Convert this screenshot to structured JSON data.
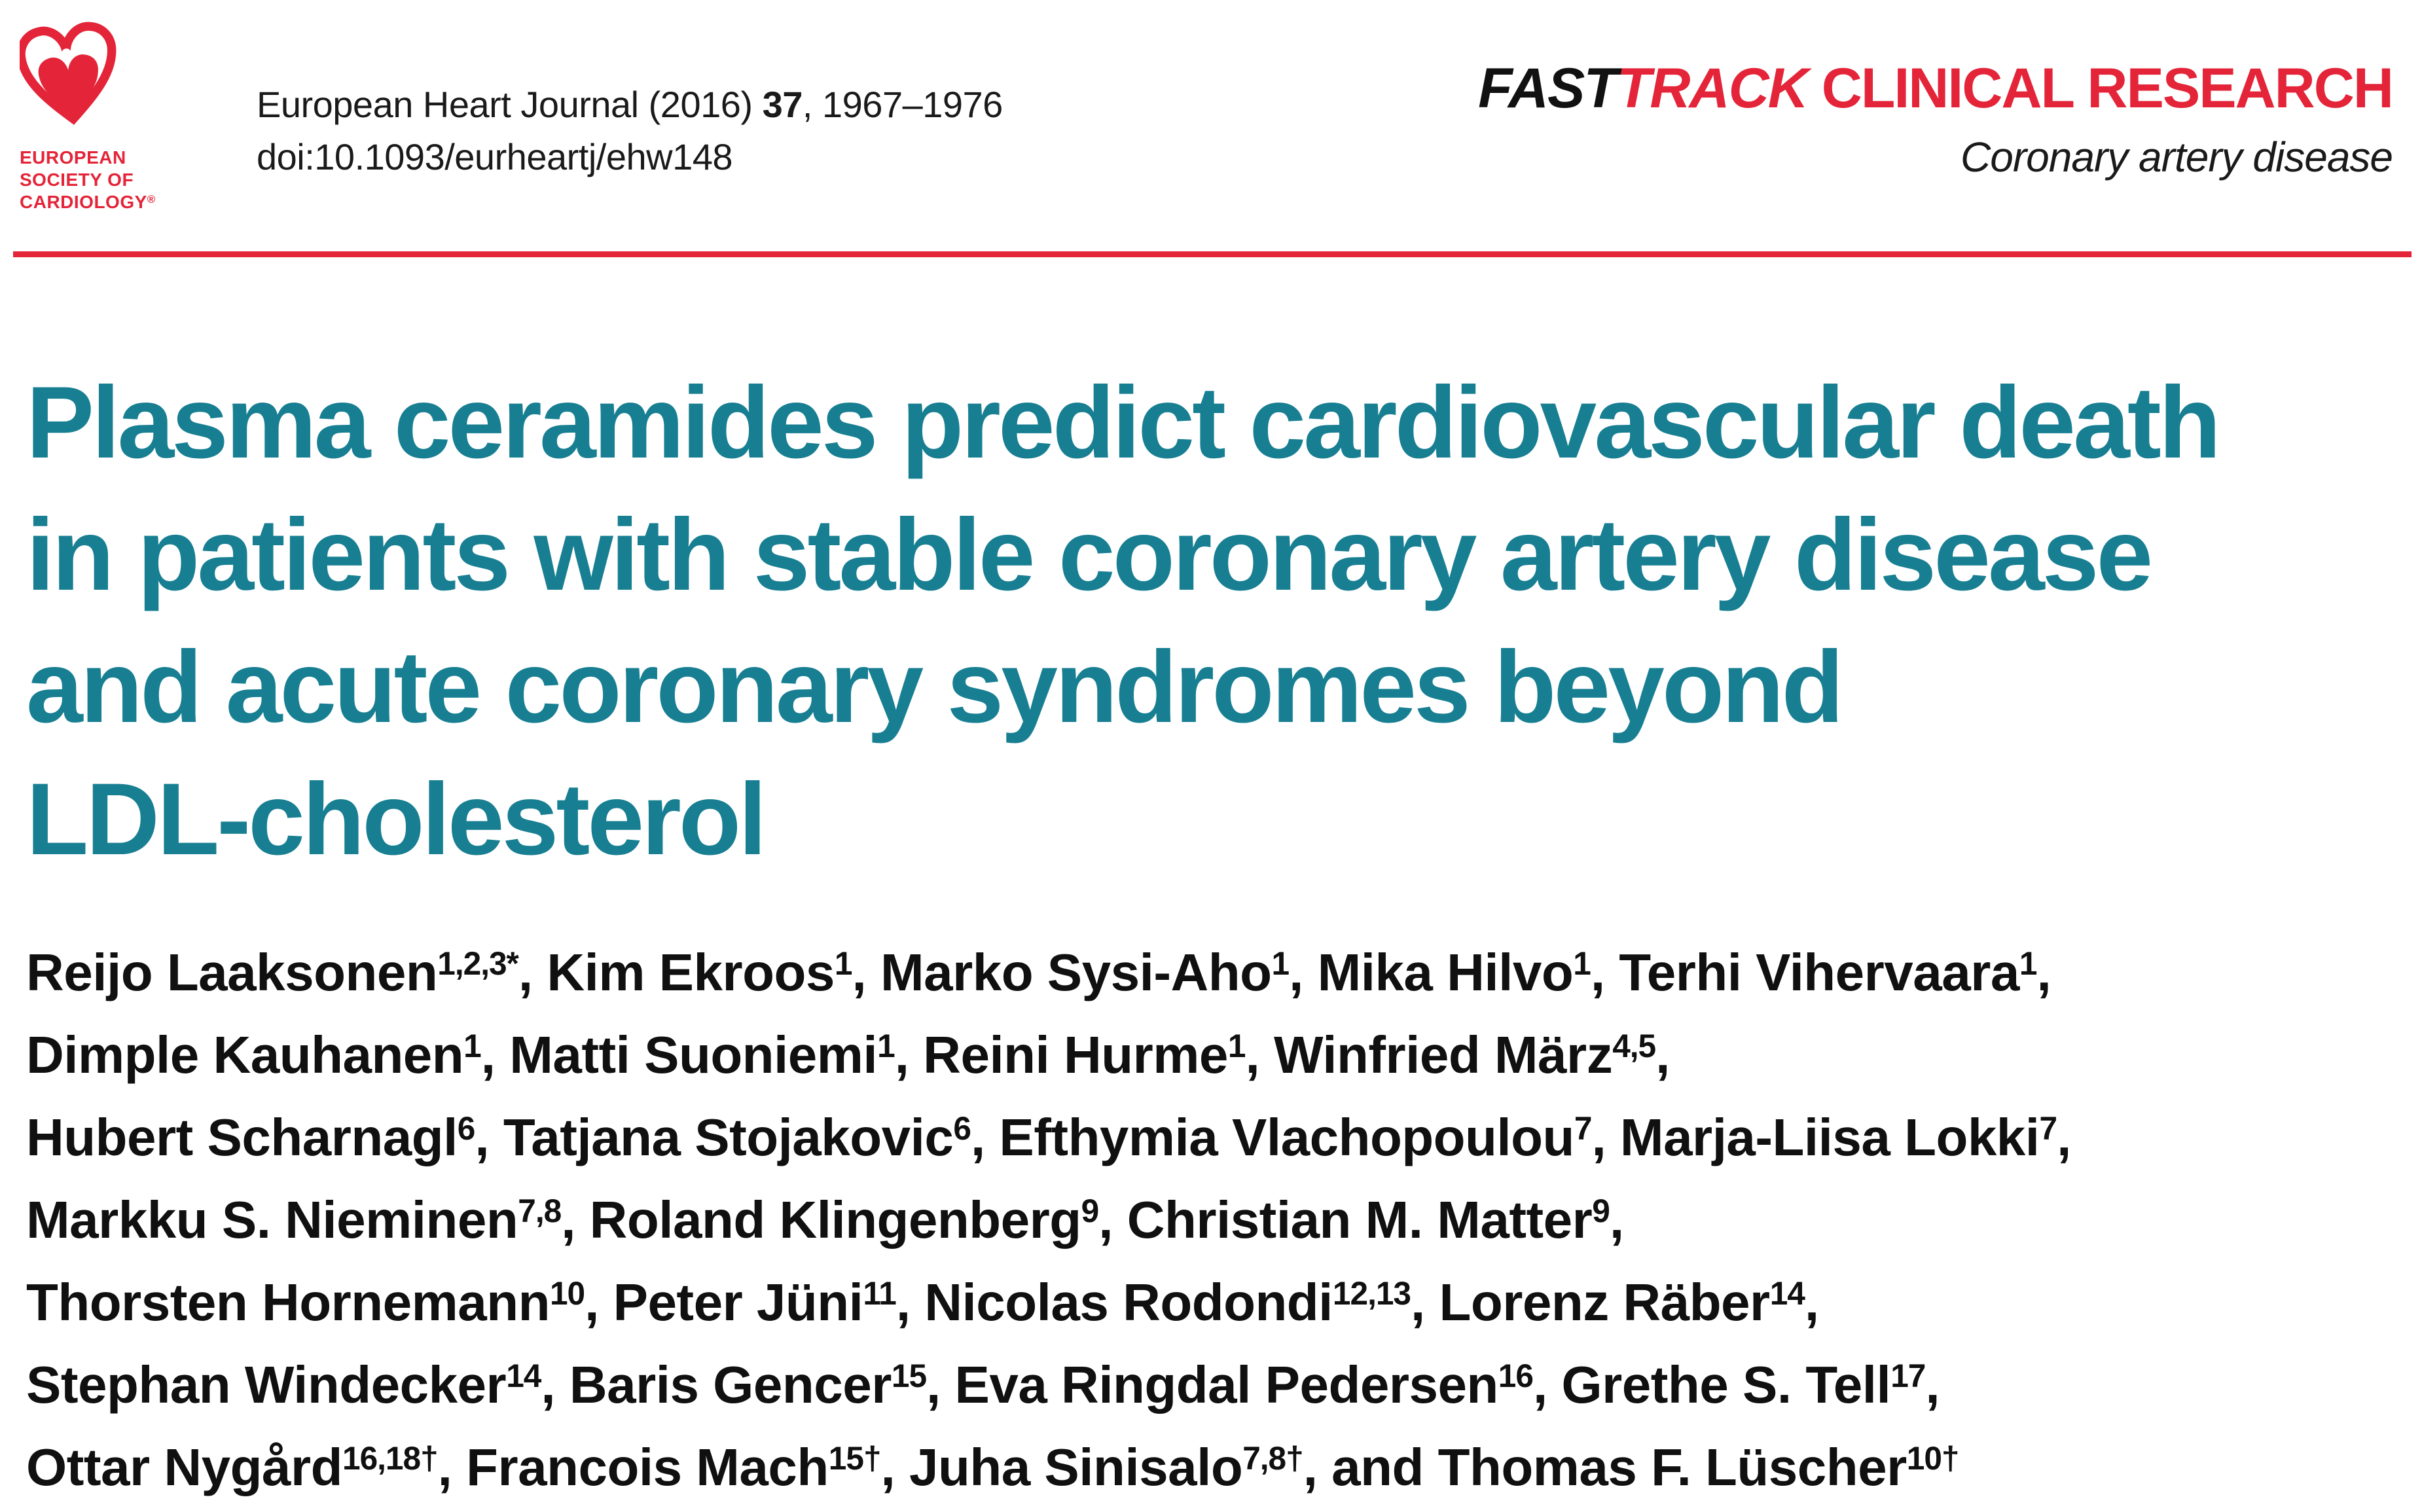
{
  "colors": {
    "brand_red": "#e42438",
    "title_teal": "#187f92",
    "text": "#1a1a1a"
  },
  "logo": {
    "line1": "EUROPEAN",
    "line2": "SOCIETY OF",
    "line3": "CARDIOLOGY",
    "reg": "®"
  },
  "citation": {
    "prefix": "European Heart Journal (2016) ",
    "volume": "37",
    "suffix": ", 1967–1976",
    "doi": "doi:10.1093/eurheartj/ehw148"
  },
  "banner": {
    "fast": "FAST",
    "track": "TRACK",
    "category": " CLINICAL RESEARCH",
    "subject": "Coronary artery disease"
  },
  "title": {
    "lines": [
      "Plasma ceramides predict cardiovascular death",
      "in patients with stable coronary artery disease",
      "and acute coronary syndromes beyond",
      "LDL-cholesterol"
    ]
  },
  "authors": {
    "lines": [
      [
        {
          "text": "Reijo Laaksonen",
          "sup": "1,2,3*"
        },
        {
          "text": ", Kim Ekroos",
          "sup": "1"
        },
        {
          "text": ", Marko Sysi-Aho",
          "sup": "1"
        },
        {
          "text": ", Mika Hilvo",
          "sup": "1"
        },
        {
          "text": ", Terhi Vihervaara",
          "sup": "1"
        },
        {
          "text": ",",
          "sup": ""
        }
      ],
      [
        {
          "text": "Dimple Kauhanen",
          "sup": "1"
        },
        {
          "text": ", Matti Suoniemi",
          "sup": "1"
        },
        {
          "text": ", Reini Hurme",
          "sup": "1"
        },
        {
          "text": ", Winfried März",
          "sup": "4,5"
        },
        {
          "text": ",",
          "sup": ""
        }
      ],
      [
        {
          "text": "Hubert Scharnagl",
          "sup": "6"
        },
        {
          "text": ", Tatjana Stojakovic",
          "sup": "6"
        },
        {
          "text": ", Efthymia Vlachopoulou",
          "sup": "7"
        },
        {
          "text": ", Marja-Liisa Lokki",
          "sup": "7"
        },
        {
          "text": ",",
          "sup": ""
        }
      ],
      [
        {
          "text": "Markku S. Nieminen",
          "sup": "7,8"
        },
        {
          "text": ", Roland Klingenberg",
          "sup": "9"
        },
        {
          "text": ", Christian M. Matter",
          "sup": "9"
        },
        {
          "text": ",",
          "sup": ""
        }
      ],
      [
        {
          "text": "Thorsten Hornemann",
          "sup": "10"
        },
        {
          "text": ", Peter Jüni",
          "sup": "11"
        },
        {
          "text": ", Nicolas Rodondi",
          "sup": "12,13"
        },
        {
          "text": ", Lorenz Räber",
          "sup": "14"
        },
        {
          "text": ",",
          "sup": ""
        }
      ],
      [
        {
          "text": "Stephan Windecker",
          "sup": "14"
        },
        {
          "text": ", Baris Gencer",
          "sup": "15"
        },
        {
          "text": ", Eva Ringdal Pedersen",
          "sup": "16"
        },
        {
          "text": ", Grethe S. Tell",
          "sup": "17"
        },
        {
          "text": ",",
          "sup": ""
        }
      ],
      [
        {
          "text": "Ottar Nygård",
          "sup": "16,18†"
        },
        {
          "text": ", Francois Mach",
          "sup": "15†"
        },
        {
          "text": ", Juha Sinisalo",
          "sup": "7,8†"
        },
        {
          "text": ", and Thomas F. Lüscher",
          "sup": "10†"
        }
      ]
    ]
  }
}
